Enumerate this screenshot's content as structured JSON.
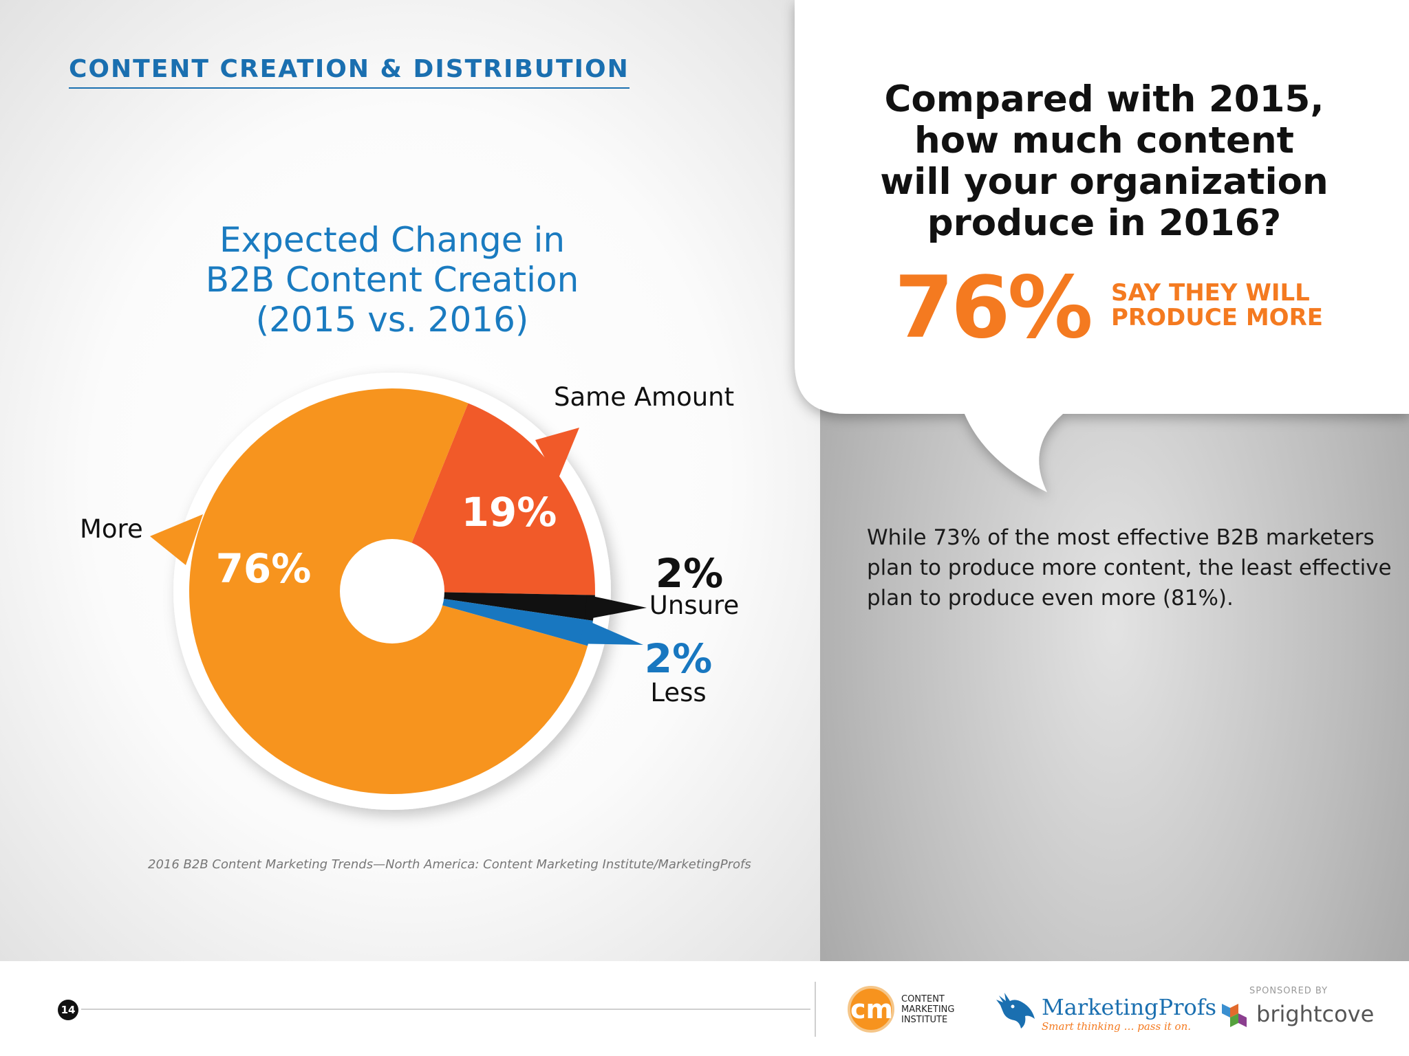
{
  "section_heading": "CONTENT CREATION & DISTRIBUTION",
  "chart_data": {
    "type": "pie",
    "title": [
      "Expected Change in",
      "B2B Content Creation",
      "(2015 vs. 2016)"
    ],
    "categories": [
      "More",
      "Same Amount",
      "Unsure",
      "Less"
    ],
    "values": [
      76,
      19,
      2,
      2
    ],
    "labels": [
      "76%",
      "19%",
      "2%",
      "2%"
    ],
    "colors": [
      "#f7941e",
      "#f15a29",
      "#111111",
      "#1877c0"
    ],
    "legend": "none",
    "grid": false
  },
  "source_note": "2016 B2B Content Marketing Trends—North America: Content Marketing Institute/MarketingProfs",
  "callout": {
    "question_lines": [
      "Compared with 2015,",
      "how much content",
      "will your organization",
      "produce in 2016?"
    ],
    "big_stat": "76%",
    "big_stat_caption": [
      "SAY THEY WILL",
      "PRODUCE MORE"
    ]
  },
  "insight_lines": [
    "While 73% of the most effective B2B marketers",
    "plan to produce more content, the least effective",
    "plan to produce even more (81%)."
  ],
  "footer": {
    "page_number": "14",
    "cmi_badge": "cm",
    "cmi_lines": [
      "CONTENT",
      "MARKETING",
      "INSTITUTE"
    ],
    "marketingprofs_name": "MarketingProfs",
    "marketingprofs_tagline": "Smart thinking … pass it on.",
    "sponsored_by": "SPONSORED BY",
    "brightcove_name": "brightcove"
  },
  "colors": {
    "accent_blue": "#1a6fb0",
    "accent_orange": "#f47a20"
  }
}
